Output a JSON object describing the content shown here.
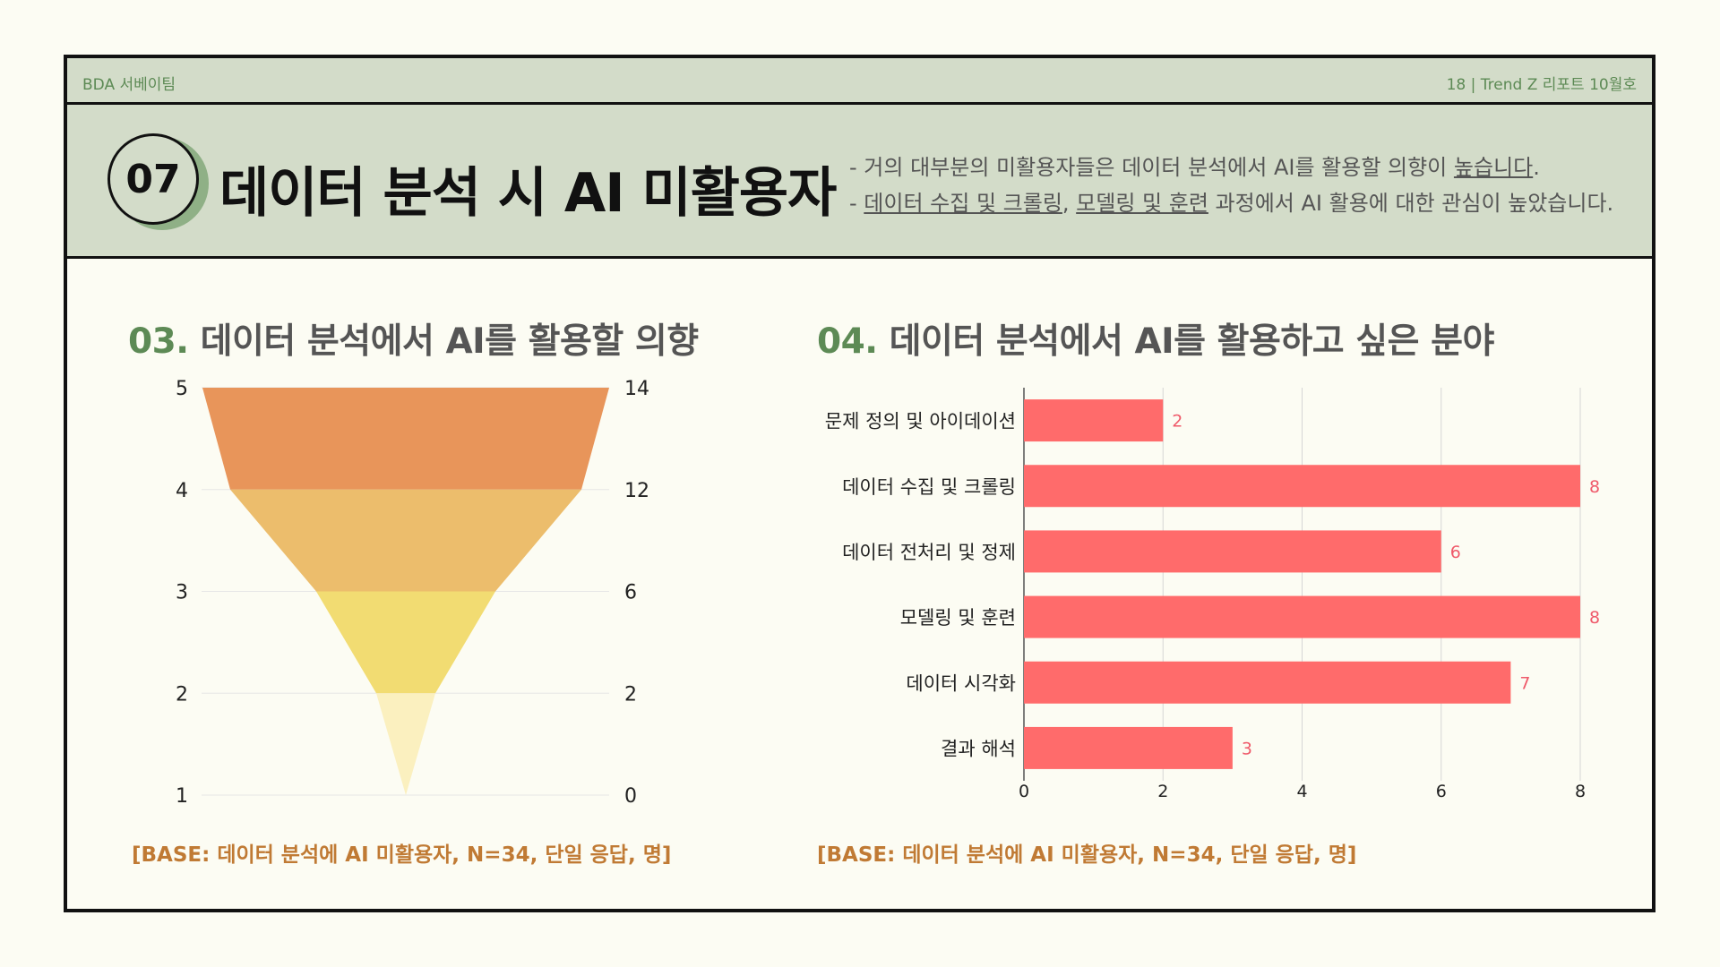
{
  "topbar": {
    "brand": "BDA 서베이팀",
    "page_info": "18 | Trend Z 리포트 10월호"
  },
  "header": {
    "badge": "07",
    "title": "데이터 분석 시 AI 미활용자",
    "note1_a": "- 거의 대부분의 미활용자들은 데이터 분석에서 AI를 활용할 의향이 ",
    "note1_u": "높습니다",
    "note1_b": ".",
    "note2_prefix": "- ",
    "note2_u1": "데이터 수집 및 크롤링",
    "note2_sep": ", ",
    "note2_u2": "모델링 및 훈련",
    "note2_rest": " 과정에서 AI 활용에 대한 관심이 높았습니다."
  },
  "left": {
    "num": "03.",
    "title": " 데이터 분석에서 AI를 활용할 의향",
    "base": "[BASE: 데이터 분석에 AI 미활용자, N=34, 단일 응답, 명]"
  },
  "right": {
    "num": "04.",
    "title": " 데이터 분석에서 AI를 활용하고 싶은 분야",
    "base": "[BASE: 데이터 분석에 AI 미활용자, N=34, 단일 응답, 명]"
  },
  "chart_data": [
    {
      "type": "funnel",
      "levels": [
        "5",
        "4",
        "3",
        "2",
        "1"
      ],
      "values": [
        14,
        12,
        6,
        2,
        0
      ],
      "colors": [
        "#e8955a",
        "#ecbd6c",
        "#f2dc72",
        "#fbf0bf"
      ]
    },
    {
      "type": "bar",
      "orientation": "horizontal",
      "categories": [
        "문제 정의 및 아이데이션",
        "데이터 수집 및 크롤링",
        "데이터 전처리 및 정제",
        "모델링 및 훈련",
        "데이터 시각화",
        "결과 해석"
      ],
      "values": [
        2,
        8,
        6,
        8,
        7,
        3
      ],
      "xlim": [
        0,
        8
      ],
      "xticks": [
        0,
        2,
        4,
        6,
        8
      ],
      "grid": true,
      "bar_color": "#ff6b6b",
      "label_color": "#ef5a6a"
    }
  ]
}
